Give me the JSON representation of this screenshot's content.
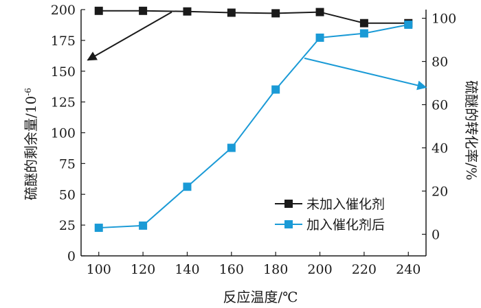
{
  "chart_data": {
    "type": "line",
    "xlabel": "反应温度/℃",
    "ylabel_left": "硫醚的剩余量/10",
    "ylabel_left_exponent": "-6",
    "ylabel_right": "硫醚的转化率/%",
    "x_ticks": [
      100,
      120,
      140,
      160,
      180,
      200,
      220,
      240
    ],
    "xlim": [
      92,
      248
    ],
    "y_left_ticks": [
      0,
      25,
      50,
      75,
      100,
      125,
      150,
      175,
      200
    ],
    "y_left_lim": [
      0,
      200
    ],
    "y_right_ticks": [
      0,
      20,
      40,
      60,
      80,
      100
    ],
    "y_right_lim": [
      -10,
      104
    ],
    "grid": false,
    "legend_position": "bottom-right",
    "series": [
      {
        "name": "未加入催化剂",
        "axis": "left",
        "color": "#1a1a1a",
        "marker": "square",
        "x": [
          100,
          120,
          140,
          160,
          180,
          200,
          220,
          240
        ],
        "y": [
          199,
          199,
          198.5,
          197.5,
          197,
          198,
          189,
          189
        ]
      },
      {
        "name": "加入催化剂后",
        "axis": "right",
        "color": "#1a9ad6",
        "marker": "square",
        "x": [
          100,
          120,
          140,
          160,
          180,
          200,
          220,
          240
        ],
        "y": [
          3,
          4,
          22,
          40,
          67,
          91,
          93,
          97
        ]
      }
    ],
    "annotations": [
      {
        "type": "arrow",
        "points_to": "left-axis",
        "color": "#1a1a1a",
        "from": [
          133,
          198
        ],
        "to": [
          95,
          159
        ]
      },
      {
        "type": "arrow",
        "points_to": "right-axis",
        "color": "#1a9ad6",
        "from": [
          193,
          81.5
        ],
        "to": [
          248,
          68
        ]
      }
    ]
  }
}
